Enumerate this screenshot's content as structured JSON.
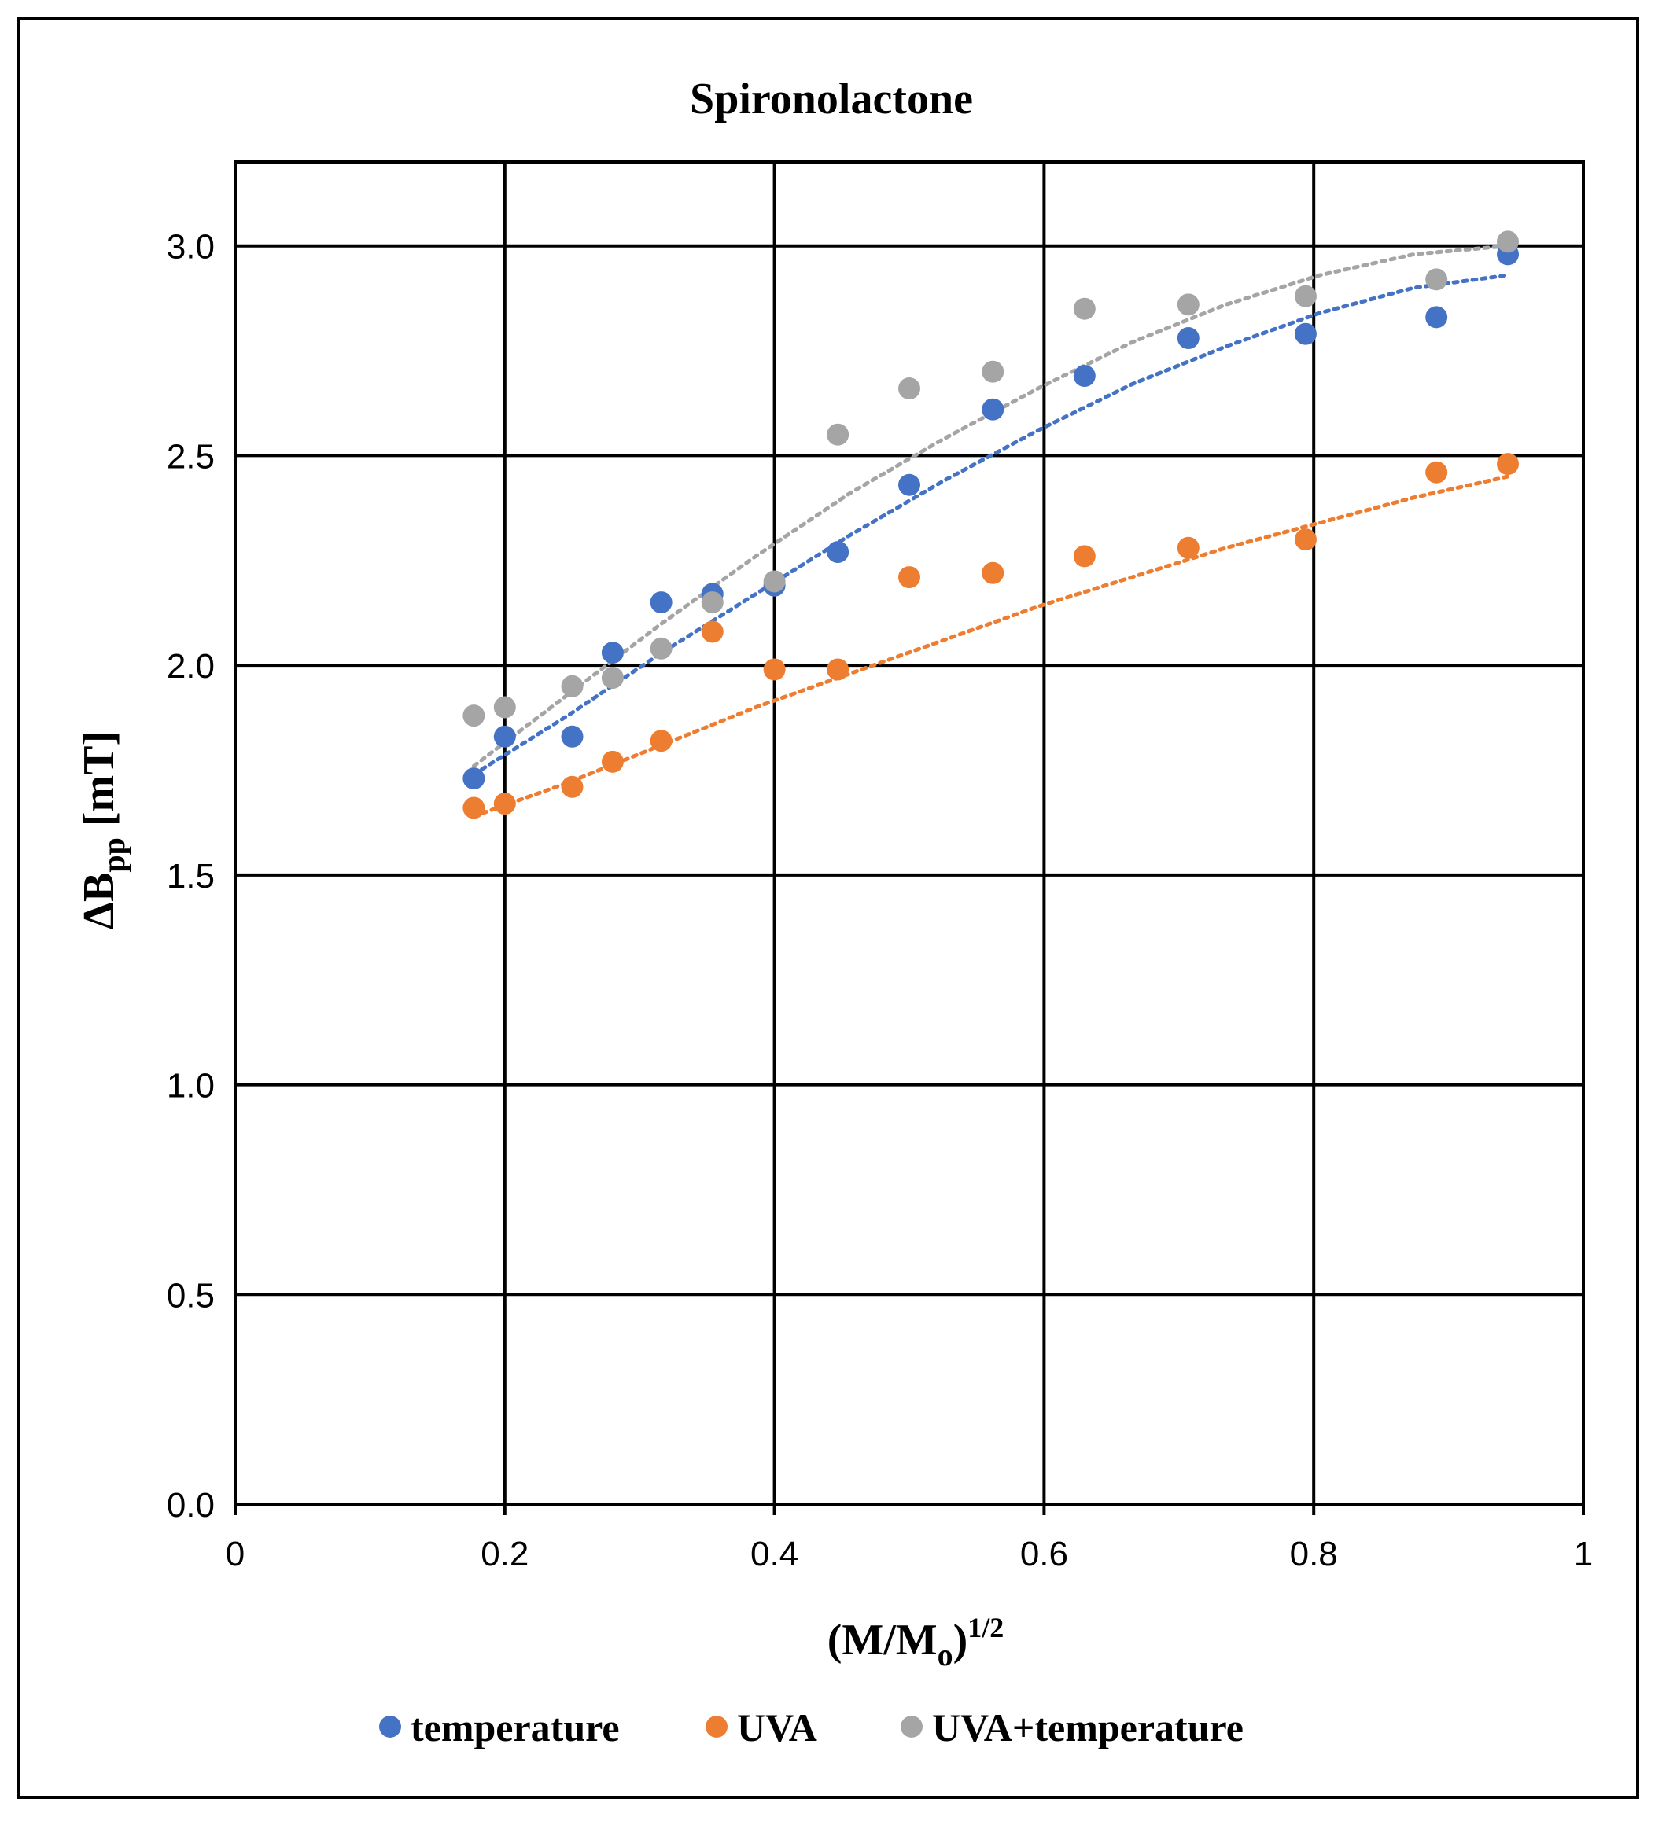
{
  "chart_data": {
    "type": "scatter",
    "title": "Spironolactone",
    "xlabel": {
      "base": "(M/M",
      "sub": "o",
      "tail": ")",
      "sup": "1/2"
    },
    "ylabel": {
      "base": "ΔB",
      "sub": "pp",
      "tail": " [mT]"
    },
    "xlim": [
      0,
      1
    ],
    "ylim": [
      0,
      3.2
    ],
    "xticks": [
      0,
      0.2,
      0.4,
      0.6,
      0.8,
      1
    ],
    "xtick_labels": [
      "0",
      "0.2",
      "0.4",
      "0.6",
      "0.8",
      "1"
    ],
    "yticks": [
      0,
      0.5,
      1.0,
      1.5,
      2.0,
      2.5,
      3.0
    ],
    "ytick_labels": [
      "0.0",
      "0.5",
      "1.0",
      "1.5",
      "2.0",
      "2.5",
      "3.0"
    ],
    "grid": true,
    "legend_position": "bottom",
    "series": [
      {
        "name": "temperature",
        "color": "#4472C4",
        "x": [
          0.177,
          0.2,
          0.25,
          0.28,
          0.316,
          0.354,
          0.4,
          0.447,
          0.5,
          0.562,
          0.63,
          0.707,
          0.794,
          0.891,
          0.944
        ],
        "y": [
          1.73,
          1.83,
          1.83,
          2.03,
          2.15,
          2.17,
          2.19,
          2.27,
          2.43,
          2.61,
          2.69,
          2.78,
          2.79,
          2.83,
          2.98
        ],
        "trendline": {
          "type": "polynomial",
          "x": [
            0.177,
            0.944
          ],
          "y_at_points": [
            1.74,
            1.88,
            2.03,
            2.17,
            2.31,
            2.44,
            2.56,
            2.67,
            2.76,
            2.84,
            2.9,
            2.93
          ]
        }
      },
      {
        "name": "UVA",
        "color": "#ED7D31",
        "x": [
          0.177,
          0.2,
          0.25,
          0.28,
          0.316,
          0.354,
          0.4,
          0.447,
          0.5,
          0.562,
          0.63,
          0.707,
          0.794,
          0.891,
          0.944
        ],
        "y": [
          1.66,
          1.67,
          1.71,
          1.77,
          1.82,
          2.08,
          1.99,
          1.99,
          2.21,
          2.22,
          2.26,
          2.28,
          2.3,
          2.46,
          2.48
        ],
        "trendline": {
          "type": "polynomial",
          "x": [
            0.177,
            0.944
          ],
          "y_at_points": [
            1.64,
            1.72,
            1.81,
            1.9,
            1.98,
            2.06,
            2.14,
            2.21,
            2.28,
            2.34,
            2.4,
            2.45
          ]
        }
      },
      {
        "name": "UVA+temperature",
        "color": "#A5A5A5",
        "x": [
          0.177,
          0.2,
          0.25,
          0.28,
          0.316,
          0.354,
          0.4,
          0.447,
          0.5,
          0.562,
          0.63,
          0.707,
          0.794,
          0.891,
          0.944
        ],
        "y": [
          1.88,
          1.9,
          1.95,
          1.97,
          2.04,
          2.15,
          2.2,
          2.55,
          2.66,
          2.7,
          2.85,
          2.86,
          2.88,
          2.92,
          3.01
        ],
        "trendline": {
          "type": "polynomial",
          "x": [
            0.177,
            0.944
          ],
          "y_at_points": [
            1.76,
            1.93,
            2.1,
            2.26,
            2.41,
            2.54,
            2.66,
            2.77,
            2.86,
            2.93,
            2.98,
            3.0
          ]
        }
      }
    ]
  }
}
